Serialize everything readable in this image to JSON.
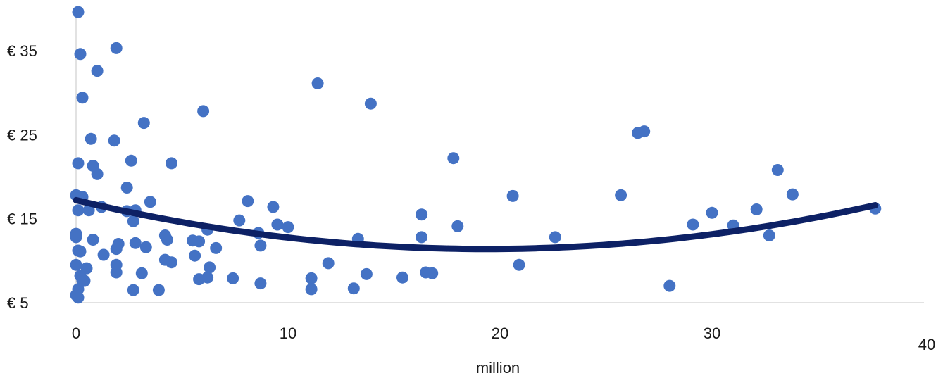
{
  "chart_data": {
    "type": "scatter",
    "title": "",
    "xlabel": "million",
    "ylabel": "",
    "xlim": [
      0,
      40
    ],
    "ylim": [
      5,
      40
    ],
    "grid": false,
    "legend": "none",
    "x_ticks": [
      {
        "value": 0,
        "label": "0"
      },
      {
        "value": 10,
        "label": "10"
      },
      {
        "value": 20,
        "label": "20"
      },
      {
        "value": 30,
        "label": "30"
      },
      {
        "value": 40,
        "label": "40"
      }
    ],
    "y_ticks": [
      {
        "value": 5,
        "label": "€ 5"
      },
      {
        "value": 15,
        "label": "€ 15"
      },
      {
        "value": 25,
        "label": "€ 25"
      },
      {
        "value": 35,
        "label": "€ 35"
      }
    ],
    "colors": {
      "points": "#4472c4",
      "trendline": "#0d2165",
      "axis": "#d9d9d9"
    },
    "points": [
      {
        "x": 0.1,
        "y": 39.6
      },
      {
        "x": 0.2,
        "y": 34.6
      },
      {
        "x": 0.3,
        "y": 29.4
      },
      {
        "x": 0.1,
        "y": 21.6
      },
      {
        "x": 0.0,
        "y": 17.8
      },
      {
        "x": 0.3,
        "y": 17.6
      },
      {
        "x": 0.1,
        "y": 16.0
      },
      {
        "x": 0.6,
        "y": 16.0
      },
      {
        "x": 0.0,
        "y": 13.2
      },
      {
        "x": 0.0,
        "y": 12.8
      },
      {
        "x": 0.1,
        "y": 11.2
      },
      {
        "x": 0.2,
        "y": 11.1
      },
      {
        "x": 0.0,
        "y": 9.5
      },
      {
        "x": 0.5,
        "y": 9.1
      },
      {
        "x": 0.2,
        "y": 8.2
      },
      {
        "x": 0.3,
        "y": 7.6
      },
      {
        "x": 0.4,
        "y": 7.6
      },
      {
        "x": 0.1,
        "y": 6.6
      },
      {
        "x": 0.0,
        "y": 5.9
      },
      {
        "x": 0.1,
        "y": 5.6
      },
      {
        "x": 1.9,
        "y": 35.3
      },
      {
        "x": 1.0,
        "y": 32.6
      },
      {
        "x": 0.7,
        "y": 24.5
      },
      {
        "x": 1.8,
        "y": 24.3
      },
      {
        "x": 0.8,
        "y": 21.3
      },
      {
        "x": 1.0,
        "y": 20.3
      },
      {
        "x": 1.2,
        "y": 16.4
      },
      {
        "x": 0.8,
        "y": 12.5
      },
      {
        "x": 1.3,
        "y": 10.7
      },
      {
        "x": 1.9,
        "y": 11.4
      },
      {
        "x": 2.0,
        "y": 12.0
      },
      {
        "x": 1.9,
        "y": 9.5
      },
      {
        "x": 1.9,
        "y": 8.6
      },
      {
        "x": 3.2,
        "y": 26.4
      },
      {
        "x": 2.6,
        "y": 21.9
      },
      {
        "x": 2.4,
        "y": 18.7
      },
      {
        "x": 2.4,
        "y": 15.9
      },
      {
        "x": 2.8,
        "y": 16.0
      },
      {
        "x": 2.7,
        "y": 14.7
      },
      {
        "x": 2.8,
        "y": 12.1
      },
      {
        "x": 3.3,
        "y": 11.6
      },
      {
        "x": 3.1,
        "y": 8.5
      },
      {
        "x": 2.7,
        "y": 6.5
      },
      {
        "x": 6.0,
        "y": 27.8
      },
      {
        "x": 4.5,
        "y": 21.6
      },
      {
        "x": 3.5,
        "y": 17.0
      },
      {
        "x": 4.2,
        "y": 13.0
      },
      {
        "x": 4.3,
        "y": 12.5
      },
      {
        "x": 4.2,
        "y": 10.1
      },
      {
        "x": 4.5,
        "y": 9.8
      },
      {
        "x": 3.9,
        "y": 6.5
      },
      {
        "x": 5.5,
        "y": 12.4
      },
      {
        "x": 5.8,
        "y": 12.3
      },
      {
        "x": 6.2,
        "y": 13.7
      },
      {
        "x": 5.6,
        "y": 10.6
      },
      {
        "x": 6.6,
        "y": 11.5
      },
      {
        "x": 6.3,
        "y": 9.2
      },
      {
        "x": 5.8,
        "y": 7.8
      },
      {
        "x": 6.2,
        "y": 8.0
      },
      {
        "x": 7.4,
        "y": 7.9
      },
      {
        "x": 8.1,
        "y": 17.1
      },
      {
        "x": 7.7,
        "y": 14.8
      },
      {
        "x": 8.6,
        "y": 13.3
      },
      {
        "x": 8.7,
        "y": 11.8
      },
      {
        "x": 8.7,
        "y": 7.3
      },
      {
        "x": 9.3,
        "y": 16.4
      },
      {
        "x": 9.5,
        "y": 14.3
      },
      {
        "x": 10.0,
        "y": 14.0
      },
      {
        "x": 11.4,
        "y": 31.1
      },
      {
        "x": 11.1,
        "y": 7.9
      },
      {
        "x": 11.9,
        "y": 9.7
      },
      {
        "x": 11.1,
        "y": 6.6
      },
      {
        "x": 13.9,
        "y": 28.7
      },
      {
        "x": 13.3,
        "y": 12.6
      },
      {
        "x": 13.7,
        "y": 8.4
      },
      {
        "x": 13.1,
        "y": 6.7
      },
      {
        "x": 15.4,
        "y": 8.0
      },
      {
        "x": 16.3,
        "y": 15.5
      },
      {
        "x": 16.3,
        "y": 12.8
      },
      {
        "x": 16.5,
        "y": 8.6
      },
      {
        "x": 16.8,
        "y": 8.5
      },
      {
        "x": 17.8,
        "y": 22.2
      },
      {
        "x": 18.0,
        "y": 14.1
      },
      {
        "x": 20.6,
        "y": 17.7
      },
      {
        "x": 20.9,
        "y": 9.5
      },
      {
        "x": 22.6,
        "y": 12.8
      },
      {
        "x": 25.7,
        "y": 17.8
      },
      {
        "x": 26.5,
        "y": 25.2
      },
      {
        "x": 26.8,
        "y": 25.4
      },
      {
        "x": 28.0,
        "y": 7.0
      },
      {
        "x": 29.1,
        "y": 14.3
      },
      {
        "x": 30.0,
        "y": 15.7
      },
      {
        "x": 31.0,
        "y": 14.2
      },
      {
        "x": 32.1,
        "y": 16.1
      },
      {
        "x": 32.7,
        "y": 13.0
      },
      {
        "x": 33.1,
        "y": 20.8
      },
      {
        "x": 33.8,
        "y": 17.9
      },
      {
        "x": 37.7,
        "y": 16.2
      }
    ],
    "trendline": {
      "type": "polynomial",
      "order": 2,
      "x_range": [
        0,
        37.7
      ],
      "coefficients": [
        17.2,
        -0.6,
        0.0155
      ]
    }
  }
}
